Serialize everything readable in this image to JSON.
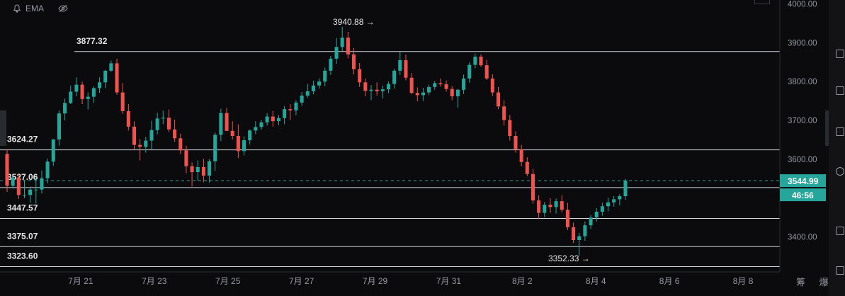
{
  "indicator": {
    "name": "EMA",
    "bell_icon": "bell-icon",
    "eye_icon": "eye-off-icon"
  },
  "bottom_labels": {
    "text": "筹 爆"
  },
  "chart_data": {
    "type": "candlestick",
    "x_labels": [
      "7月 21",
      "7月 23",
      "7月 25",
      "7月 27",
      "7月 29",
      "7月 31",
      "8月 2",
      "8月 4",
      "8月 6",
      "8月 8"
    ],
    "x_range": [
      "7月 19",
      "8月 9"
    ],
    "ylim": [
      3310,
      4010
    ],
    "y_ticks": [
      {
        "value": 3400,
        "label": "3400.00"
      },
      {
        "value": 3600,
        "label": "3600.00"
      },
      {
        "value": 3700,
        "label": "3700.00"
      },
      {
        "value": 3800,
        "label": "3800.00"
      },
      {
        "value": 3900,
        "label": "3900.00"
      },
      {
        "value": 4000,
        "label": "4000.00"
      }
    ],
    "horizontal_levels": [
      {
        "value": 3877.32,
        "label": "3877.32"
      },
      {
        "value": 3624.27,
        "label": "3624.27"
      },
      {
        "value": 3527.06,
        "label": "3527.06"
      },
      {
        "value": 3447.57,
        "label": "3447.57"
      },
      {
        "value": 3375.07,
        "label": "3375.07"
      },
      {
        "value": 3323.6,
        "label": "3323.60"
      }
    ],
    "annotations": [
      {
        "text": "3940.88 →",
        "value": 3940.88,
        "at": "7月 28"
      },
      {
        "text": "3352.33 →",
        "value": 3352.33,
        "at": "8月 3"
      }
    ],
    "current_price": {
      "value": 3544.99,
      "label": "3544.99",
      "countdown": "46:56"
    },
    "path": [
      [
        0,
        3610
      ],
      [
        0.7,
        3490
      ],
      [
        1.4,
        3530
      ],
      [
        2.0,
        3550
      ],
      [
        2.6,
        3780
      ],
      [
        3.2,
        3800
      ],
      [
        3.8,
        3840
      ],
      [
        4.6,
        3620
      ],
      [
        5.3,
        3760
      ],
      [
        6.0,
        3620
      ],
      [
        6.6,
        3690
      ],
      [
        7.2,
        3560
      ],
      [
        7.8,
        3610
      ],
      [
        8.4,
        3540
      ],
      [
        9.0,
        3740
      ],
      [
        9.6,
        3620
      ],
      [
        10.3,
        3700
      ],
      [
        11.0,
        3720
      ],
      [
        11.6,
        3800
      ],
      [
        12.2,
        3780
      ],
      [
        12.8,
        3850
      ],
      [
        13.4,
        3930
      ],
      [
        14.0,
        3810
      ],
      [
        14.6,
        3760
      ],
      [
        15.1,
        3870
      ],
      [
        15.7,
        3760
      ],
      [
        16.3,
        3800
      ],
      [
        16.8,
        3750
      ],
      [
        17.5,
        3860
      ],
      [
        18.2,
        3780
      ],
      [
        18.8,
        3690
      ],
      [
        19.4,
        3600
      ],
      [
        20.0,
        3490
      ],
      [
        20.5,
        3470
      ],
      [
        21.0,
        3450
      ],
      [
        21.6,
        3440
      ],
      [
        22.1,
        3380
      ],
      [
        22.6,
        3420
      ],
      [
        23.2,
        3480
      ],
      [
        23.9,
        3500
      ],
      [
        24.3,
        3540
      ]
    ],
    "candles": [
      {
        "o": 3614,
        "h": 3626,
        "l": 3516,
        "c": 3532
      },
      {
        "o": 3532,
        "h": 3557,
        "l": 3524,
        "c": 3553
      },
      {
        "o": 3553,
        "h": 3564,
        "l": 3498,
        "c": 3508
      },
      {
        "o": 3508,
        "h": 3547,
        "l": 3500,
        "c": 3508
      },
      {
        "o": 3508,
        "h": 3530,
        "l": 3488,
        "c": 3522
      },
      {
        "o": 3522,
        "h": 3554,
        "l": 3486,
        "c": 3522
      },
      {
        "o": 3522,
        "h": 3571,
        "l": 3512,
        "c": 3551
      },
      {
        "o": 3551,
        "h": 3602,
        "l": 3538,
        "c": 3594
      },
      {
        "o": 3594,
        "h": 3652,
        "l": 3583,
        "c": 3651
      },
      {
        "o": 3651,
        "h": 3726,
        "l": 3635,
        "c": 3718
      },
      {
        "o": 3718,
        "h": 3756,
        "l": 3700,
        "c": 3745
      },
      {
        "o": 3745,
        "h": 3790,
        "l": 3742,
        "c": 3774
      },
      {
        "o": 3774,
        "h": 3811,
        "l": 3762,
        "c": 3792
      },
      {
        "o": 3792,
        "h": 3800,
        "l": 3742,
        "c": 3755
      },
      {
        "o": 3755,
        "h": 3772,
        "l": 3728,
        "c": 3761
      },
      {
        "o": 3761,
        "h": 3787,
        "l": 3745,
        "c": 3783
      },
      {
        "o": 3783,
        "h": 3811,
        "l": 3771,
        "c": 3798
      },
      {
        "o": 3798,
        "h": 3830,
        "l": 3783,
        "c": 3828
      },
      {
        "o": 3828,
        "h": 3854,
        "l": 3825,
        "c": 3847
      },
      {
        "o": 3847,
        "h": 3859,
        "l": 3766,
        "c": 3772
      },
      {
        "o": 3772,
        "h": 3796,
        "l": 3717,
        "c": 3724
      },
      {
        "o": 3724,
        "h": 3742,
        "l": 3674,
        "c": 3684
      },
      {
        "o": 3684,
        "h": 3698,
        "l": 3626,
        "c": 3637
      },
      {
        "o": 3637,
        "h": 3652,
        "l": 3597,
        "c": 3632
      },
      {
        "o": 3632,
        "h": 3658,
        "l": 3617,
        "c": 3648
      },
      {
        "o": 3648,
        "h": 3699,
        "l": 3624,
        "c": 3675
      },
      {
        "o": 3675,
        "h": 3720,
        "l": 3664,
        "c": 3705
      },
      {
        "o": 3705,
        "h": 3725,
        "l": 3690,
        "c": 3707
      },
      {
        "o": 3707,
        "h": 3728,
        "l": 3670,
        "c": 3677
      },
      {
        "o": 3677,
        "h": 3702,
        "l": 3645,
        "c": 3654
      },
      {
        "o": 3654,
        "h": 3666,
        "l": 3613,
        "c": 3623
      },
      {
        "o": 3623,
        "h": 3635,
        "l": 3564,
        "c": 3582
      },
      {
        "o": 3582,
        "h": 3592,
        "l": 3530,
        "c": 3567
      },
      {
        "o": 3567,
        "h": 3597,
        "l": 3545,
        "c": 3580
      },
      {
        "o": 3580,
        "h": 3601,
        "l": 3541,
        "c": 3558
      },
      {
        "o": 3558,
        "h": 3600,
        "l": 3540,
        "c": 3595
      },
      {
        "o": 3595,
        "h": 3669,
        "l": 3570,
        "c": 3663
      },
      {
        "o": 3663,
        "h": 3730,
        "l": 3647,
        "c": 3719
      },
      {
        "o": 3719,
        "h": 3732,
        "l": 3673,
        "c": 3673
      },
      {
        "o": 3673,
        "h": 3698,
        "l": 3651,
        "c": 3660
      },
      {
        "o": 3660,
        "h": 3690,
        "l": 3603,
        "c": 3621
      },
      {
        "o": 3621,
        "h": 3659,
        "l": 3610,
        "c": 3649
      },
      {
        "o": 3649,
        "h": 3677,
        "l": 3638,
        "c": 3674
      },
      {
        "o": 3674,
        "h": 3698,
        "l": 3665,
        "c": 3683
      },
      {
        "o": 3683,
        "h": 3701,
        "l": 3676,
        "c": 3695
      },
      {
        "o": 3695,
        "h": 3719,
        "l": 3687,
        "c": 3710
      },
      {
        "o": 3710,
        "h": 3724,
        "l": 3684,
        "c": 3698
      },
      {
        "o": 3698,
        "h": 3714,
        "l": 3688,
        "c": 3706
      },
      {
        "o": 3706,
        "h": 3737,
        "l": 3690,
        "c": 3729
      },
      {
        "o": 3729,
        "h": 3742,
        "l": 3701,
        "c": 3726
      },
      {
        "o": 3726,
        "h": 3752,
        "l": 3713,
        "c": 3746
      },
      {
        "o": 3746,
        "h": 3773,
        "l": 3738,
        "c": 3764
      },
      {
        "o": 3764,
        "h": 3794,
        "l": 3758,
        "c": 3775
      },
      {
        "o": 3775,
        "h": 3802,
        "l": 3767,
        "c": 3790
      },
      {
        "o": 3790,
        "h": 3808,
        "l": 3782,
        "c": 3800
      },
      {
        "o": 3800,
        "h": 3836,
        "l": 3788,
        "c": 3828
      },
      {
        "o": 3828,
        "h": 3866,
        "l": 3817,
        "c": 3859
      },
      {
        "o": 3859,
        "h": 3912,
        "l": 3846,
        "c": 3889
      },
      {
        "o": 3889,
        "h": 3941,
        "l": 3878,
        "c": 3913
      },
      {
        "o": 3913,
        "h": 3928,
        "l": 3860,
        "c": 3870
      },
      {
        "o": 3870,
        "h": 3886,
        "l": 3819,
        "c": 3832
      },
      {
        "o": 3832,
        "h": 3848,
        "l": 3786,
        "c": 3798
      },
      {
        "o": 3798,
        "h": 3808,
        "l": 3762,
        "c": 3776
      },
      {
        "o": 3776,
        "h": 3791,
        "l": 3752,
        "c": 3779
      },
      {
        "o": 3779,
        "h": 3798,
        "l": 3764,
        "c": 3775
      },
      {
        "o": 3775,
        "h": 3790,
        "l": 3756,
        "c": 3780
      },
      {
        "o": 3780,
        "h": 3800,
        "l": 3770,
        "c": 3794
      },
      {
        "o": 3794,
        "h": 3833,
        "l": 3782,
        "c": 3828
      },
      {
        "o": 3828,
        "h": 3876,
        "l": 3817,
        "c": 3855
      },
      {
        "o": 3855,
        "h": 3869,
        "l": 3803,
        "c": 3810
      },
      {
        "o": 3810,
        "h": 3822,
        "l": 3767,
        "c": 3771
      },
      {
        "o": 3771,
        "h": 3785,
        "l": 3749,
        "c": 3765
      },
      {
        "o": 3765,
        "h": 3784,
        "l": 3750,
        "c": 3772
      },
      {
        "o": 3772,
        "h": 3792,
        "l": 3765,
        "c": 3786
      },
      {
        "o": 3786,
        "h": 3802,
        "l": 3779,
        "c": 3796
      },
      {
        "o": 3796,
        "h": 3808,
        "l": 3787,
        "c": 3793
      },
      {
        "o": 3793,
        "h": 3803,
        "l": 3774,
        "c": 3781
      },
      {
        "o": 3781,
        "h": 3788,
        "l": 3752,
        "c": 3762
      },
      {
        "o": 3762,
        "h": 3781,
        "l": 3733,
        "c": 3779
      },
      {
        "o": 3779,
        "h": 3818,
        "l": 3768,
        "c": 3808
      },
      {
        "o": 3808,
        "h": 3850,
        "l": 3797,
        "c": 3843
      },
      {
        "o": 3843,
        "h": 3872,
        "l": 3834,
        "c": 3864
      },
      {
        "o": 3864,
        "h": 3870,
        "l": 3838,
        "c": 3842
      },
      {
        "o": 3842,
        "h": 3856,
        "l": 3804,
        "c": 3808
      },
      {
        "o": 3808,
        "h": 3819,
        "l": 3763,
        "c": 3772
      },
      {
        "o": 3772,
        "h": 3786,
        "l": 3729,
        "c": 3736
      },
      {
        "o": 3736,
        "h": 3752,
        "l": 3687,
        "c": 3701
      },
      {
        "o": 3701,
        "h": 3714,
        "l": 3648,
        "c": 3660
      },
      {
        "o": 3660,
        "h": 3672,
        "l": 3617,
        "c": 3626
      },
      {
        "o": 3626,
        "h": 3637,
        "l": 3582,
        "c": 3593
      },
      {
        "o": 3593,
        "h": 3605,
        "l": 3556,
        "c": 3562
      },
      {
        "o": 3562,
        "h": 3575,
        "l": 3486,
        "c": 3494
      },
      {
        "o": 3494,
        "h": 3507,
        "l": 3446,
        "c": 3462
      },
      {
        "o": 3462,
        "h": 3490,
        "l": 3452,
        "c": 3483
      },
      {
        "o": 3483,
        "h": 3500,
        "l": 3462,
        "c": 3477
      },
      {
        "o": 3477,
        "h": 3499,
        "l": 3460,
        "c": 3492
      },
      {
        "o": 3492,
        "h": 3507,
        "l": 3463,
        "c": 3470
      },
      {
        "o": 3470,
        "h": 3488,
        "l": 3418,
        "c": 3425
      },
      {
        "o": 3425,
        "h": 3437,
        "l": 3385,
        "c": 3392
      },
      {
        "o": 3392,
        "h": 3410,
        "l": 3352,
        "c": 3402
      },
      {
        "o": 3402,
        "h": 3440,
        "l": 3390,
        "c": 3430
      },
      {
        "o": 3430,
        "h": 3457,
        "l": 3420,
        "c": 3450
      },
      {
        "o": 3450,
        "h": 3474,
        "l": 3440,
        "c": 3465
      },
      {
        "o": 3465,
        "h": 3488,
        "l": 3455,
        "c": 3479
      },
      {
        "o": 3479,
        "h": 3501,
        "l": 3466,
        "c": 3489
      },
      {
        "o": 3489,
        "h": 3505,
        "l": 3478,
        "c": 3497
      },
      {
        "o": 3497,
        "h": 3510,
        "l": 3481,
        "c": 3505
      },
      {
        "o": 3505,
        "h": 3549,
        "l": 3496,
        "c": 3545
      }
    ]
  }
}
